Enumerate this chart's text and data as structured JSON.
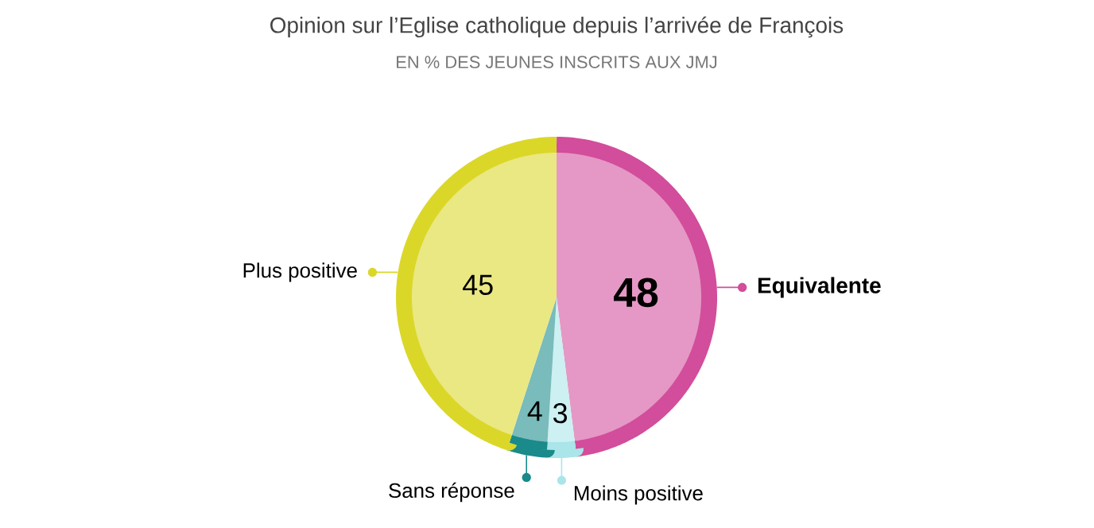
{
  "chart_data": {
    "type": "pie",
    "title": "Opinion sur l’Eglise catholique depuis l’arrivée de François",
    "subtitle": "EN % DES JEUNES INSCRITS AUX JMJ",
    "categories": [
      "Equivalente",
      "Moins positive",
      "Sans réponse",
      "Plus positive"
    ],
    "values": [
      48,
      3,
      4,
      45
    ],
    "colors": [
      "#e598c5",
      "#cdf0f2",
      "#7abbbb",
      "#eae883"
    ],
    "data_labels": true
  }
}
